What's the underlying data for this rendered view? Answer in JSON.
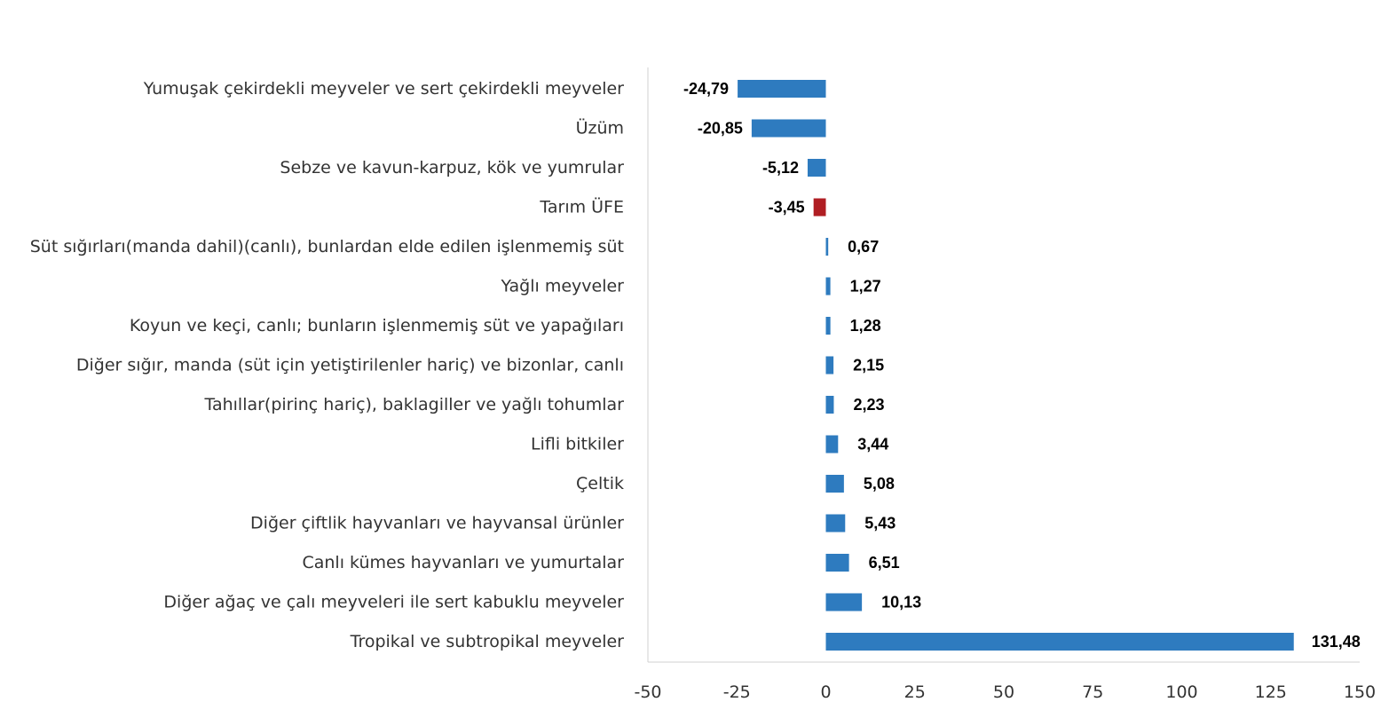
{
  "chart_data": {
    "type": "bar",
    "orientation": "horizontal",
    "categories": [
      "Yumuşak çekirdekli meyveler ve sert çekirdekli meyveler",
      "Üzüm",
      "Sebze ve kavun-karpuz, kök ve yumrular",
      "Tarım ÜFE",
      "Süt sığırları(manda dahil)(canlı), bunlardan elde edilen işlenmemiş süt",
      "Yağlı meyveler",
      "Koyun ve keçi, canlı; bunların işlenmemiş süt ve yapağıları",
      "Diğer sığır, manda (süt için yetiştirilenler hariç) ve bizonlar, canlı",
      "Tahıllar(pirinç hariç), baklagiller ve yağlı tohumlar",
      "Lifli bitkiler",
      "Çeltik",
      "Diğer çiftlik hayvanları ve hayvansal ürünler",
      "Canlı kümes hayvanları ve yumurtalar",
      "Diğer ağaç ve çalı meyveleri ile sert kabuklu meyveler",
      "Tropikal ve subtropikal meyveler"
    ],
    "values": [
      -24.79,
      -20.85,
      -5.12,
      -3.45,
      0.67,
      1.27,
      1.28,
      2.15,
      2.23,
      3.44,
      5.08,
      5.43,
      6.51,
      10.13,
      131.48
    ],
    "data_labels": [
      "-24,79",
      "-20,85",
      "-5,12",
      "-3,45",
      "0,67",
      "1,27",
      "1,28",
      "2,15",
      "2,23",
      "3,44",
      "5,08",
      "5,43",
      "6,51",
      "10,13",
      "131,48"
    ],
    "highlight_index": 3,
    "xlim": [
      -50,
      150
    ],
    "xticks": [
      -50,
      -25,
      0,
      25,
      50,
      75,
      100,
      125,
      150
    ],
    "xtick_labels": [
      "-50",
      "-25",
      "0",
      "25",
      "50",
      "75",
      "100",
      "125",
      "150"
    ],
    "grid": false,
    "legend": "none",
    "colors": {
      "bar": "#2E7BBF",
      "highlight": "#B01E23",
      "axis": "#D0D0D0"
    }
  }
}
